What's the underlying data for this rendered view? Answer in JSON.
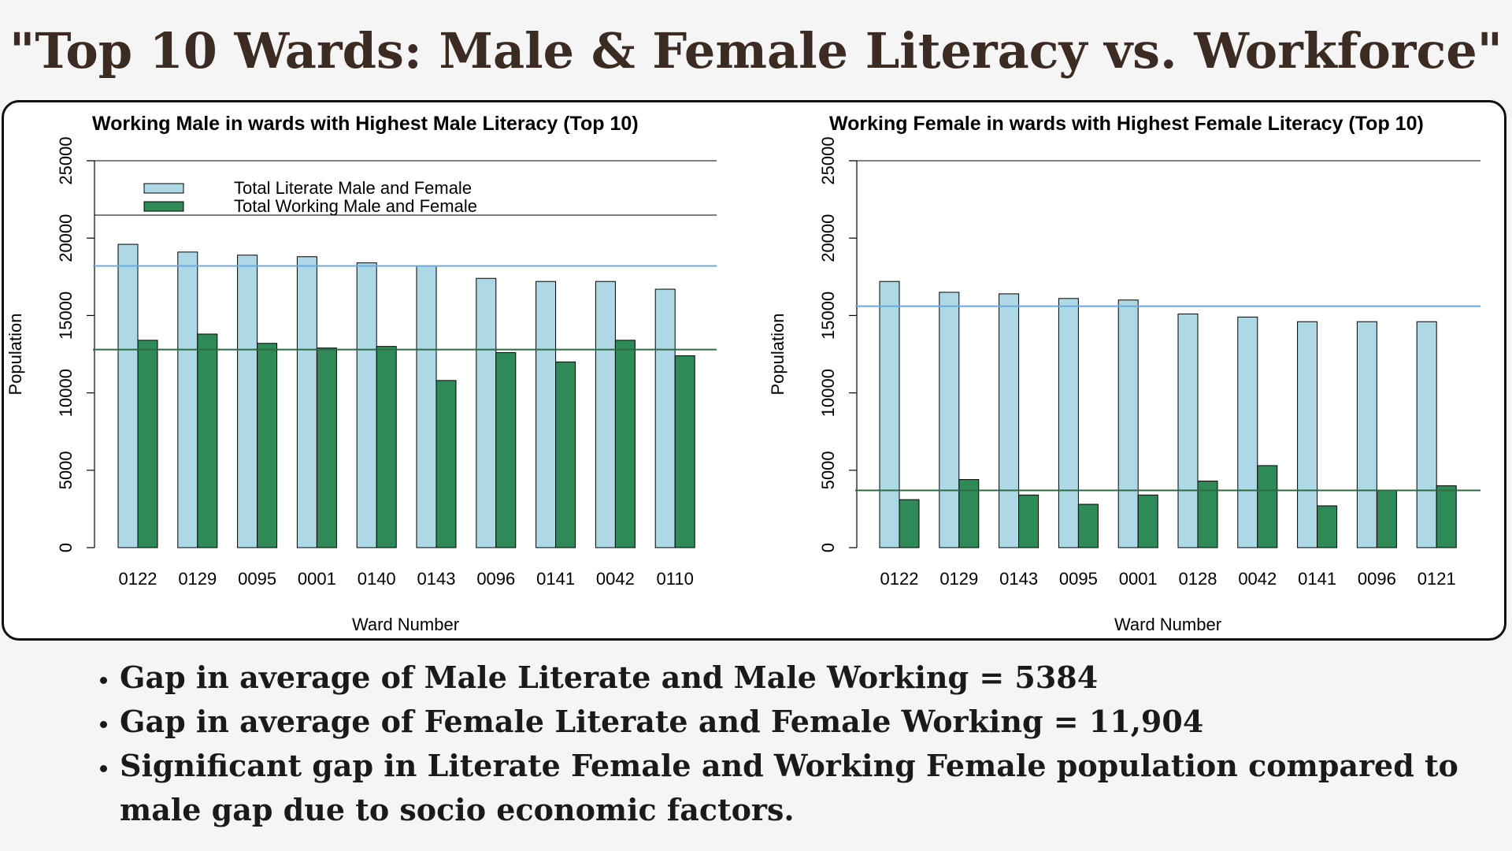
{
  "page_title": "\"Top 10 Wards: Male & Female Literacy vs. Workforce\"",
  "colors": {
    "literate": "#add8e6",
    "working": "#2e8b57",
    "literate_line": "#6fa8dc",
    "working_line": "#2e6b45"
  },
  "chart_data": [
    {
      "type": "bar",
      "title": "Working Male in wards with Highest Male Literacy (Top 10)",
      "xlabel": "Ward Number",
      "ylabel": "Population",
      "ylim": [
        0,
        25000
      ],
      "yticks": [
        "0",
        "5000",
        "10000",
        "15000",
        "20000",
        "25000"
      ],
      "categories": [
        "0122",
        "0129",
        "0095",
        "0001",
        "0140",
        "0143",
        "0096",
        "0141",
        "0042",
        "0110"
      ],
      "series": [
        {
          "name": "Total Literate Male and Female",
          "values": [
            19600,
            19100,
            18900,
            18800,
            18400,
            18200,
            17400,
            17200,
            17200,
            16700
          ]
        },
        {
          "name": "Total Working Male and Female",
          "values": [
            13400,
            13800,
            13200,
            12900,
            13000,
            10800,
            12600,
            12000,
            13400,
            12400
          ]
        }
      ],
      "reference_lines": [
        18200,
        12800
      ],
      "legend": "top-left"
    },
    {
      "type": "bar",
      "title": "Working Female in wards with Highest Female Literacy (Top 10)",
      "xlabel": "Ward Number",
      "ylabel": "Population",
      "ylim": [
        0,
        25000
      ],
      "yticks": [
        "0",
        "5000",
        "10000",
        "15000",
        "20000",
        "25000"
      ],
      "categories": [
        "0122",
        "0129",
        "0143",
        "0095",
        "0001",
        "0128",
        "0042",
        "0141",
        "0096",
        "0121"
      ],
      "series": [
        {
          "values": [
            17200,
            16500,
            16400,
            16100,
            16000,
            15100,
            14900,
            14600,
            14600,
            14600
          ]
        },
        {
          "values": [
            3100,
            4400,
            3400,
            2800,
            3400,
            4300,
            5300,
            2700,
            3700,
            4000
          ]
        }
      ],
      "reference_lines": [
        15600,
        3700
      ]
    }
  ],
  "bullets": [
    "Gap in average of Male Literate and Male Working = 5384",
    "Gap in average of Female Literate and Female Working = 11,904",
    "Significant gap in Literate Female and Working Female population compared to male gap due to socio economic factors."
  ]
}
